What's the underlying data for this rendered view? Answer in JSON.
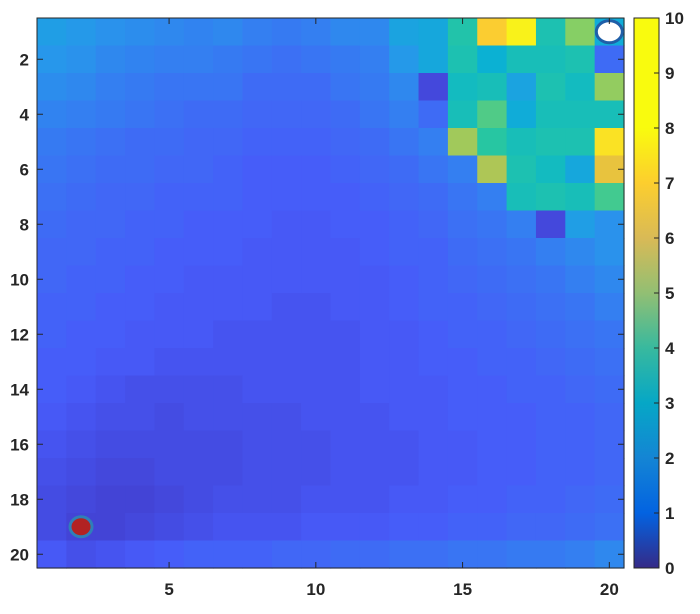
{
  "chart_data": {
    "type": "heatmap",
    "title": "",
    "xlabel": "",
    "ylabel": "",
    "x_ticks": [
      5,
      10,
      15,
      20
    ],
    "y_ticks": [
      2,
      4,
      6,
      8,
      10,
      12,
      14,
      16,
      18,
      20
    ],
    "xlim": [
      0.5,
      20.5
    ],
    "ylim": [
      0.5,
      20.5
    ],
    "y_direction": "reverse",
    "colorbar": {
      "min": 0,
      "max": 10,
      "ticks": [
        0,
        1,
        2,
        3,
        4,
        5,
        6,
        7,
        8,
        9,
        10
      ],
      "colormap": "parula",
      "placement": "right"
    },
    "grid": false,
    "markers": [
      {
        "name": "start",
        "x": 2,
        "y": 19,
        "fill": "#b22222",
        "stroke": "#2f7fb8"
      },
      {
        "name": "goal",
        "x": 20,
        "y": 1,
        "fill": "#ffffff",
        "stroke": "#1f5fa8"
      }
    ],
    "values": [
      [
        2.8,
        2.6,
        2.4,
        2.3,
        2.2,
        2.1,
        2.2,
        2.0,
        1.9,
        2.0,
        2.2,
        2.2,
        3.0,
        3.2,
        4.8,
        8.9,
        9.8,
        4.6,
        6.4,
        3.4
      ],
      [
        2.5,
        2.4,
        2.2,
        2.1,
        2.0,
        2.0,
        1.9,
        1.8,
        1.7,
        1.8,
        1.9,
        2.0,
        2.6,
        3.2,
        4.6,
        3.6,
        4.4,
        4.4,
        4.6,
        1.6
      ],
      [
        2.3,
        2.2,
        2.0,
        1.9,
        1.8,
        1.8,
        1.8,
        1.6,
        1.6,
        1.6,
        1.8,
        1.9,
        2.2,
        0.8,
        4.2,
        4.4,
        3.0,
        4.6,
        4.2,
        6.6
      ],
      [
        2.1,
        2.0,
        1.9,
        1.8,
        1.7,
        1.6,
        1.6,
        1.5,
        1.5,
        1.5,
        1.6,
        1.8,
        2.0,
        1.6,
        4.4,
        5.6,
        3.4,
        4.4,
        4.4,
        4.4
      ],
      [
        1.9,
        1.8,
        1.7,
        1.6,
        1.6,
        1.5,
        1.5,
        1.4,
        1.4,
        1.4,
        1.5,
        1.6,
        1.8,
        2.0,
        6.8,
        5.0,
        4.4,
        4.6,
        4.6,
        9.4
      ],
      [
        1.8,
        1.7,
        1.6,
        1.6,
        1.5,
        1.5,
        1.4,
        1.3,
        1.3,
        1.3,
        1.4,
        1.5,
        1.6,
        1.8,
        2.0,
        7.0,
        4.6,
        4.2,
        3.2,
        8.2
      ],
      [
        1.7,
        1.6,
        1.5,
        1.5,
        1.4,
        1.4,
        1.4,
        1.3,
        1.3,
        1.3,
        1.3,
        1.4,
        1.5,
        1.6,
        1.8,
        2.0,
        4.4,
        4.6,
        4.4,
        5.4
      ],
      [
        1.6,
        1.5,
        1.5,
        1.4,
        1.4,
        1.3,
        1.3,
        1.3,
        1.2,
        1.2,
        1.3,
        1.3,
        1.4,
        1.5,
        1.7,
        1.8,
        2.0,
        0.8,
        2.8,
        2.4
      ],
      [
        1.5,
        1.5,
        1.4,
        1.4,
        1.3,
        1.3,
        1.3,
        1.2,
        1.2,
        1.2,
        1.2,
        1.3,
        1.4,
        1.4,
        1.6,
        1.7,
        1.8,
        2.0,
        2.2,
        2.4
      ],
      [
        1.5,
        1.4,
        1.4,
        1.3,
        1.3,
        1.2,
        1.2,
        1.2,
        1.2,
        1.2,
        1.2,
        1.2,
        1.3,
        1.4,
        1.5,
        1.6,
        1.7,
        1.8,
        2.0,
        2.2
      ],
      [
        1.4,
        1.4,
        1.3,
        1.3,
        1.2,
        1.2,
        1.2,
        1.2,
        1.1,
        1.1,
        1.2,
        1.2,
        1.3,
        1.4,
        1.4,
        1.5,
        1.6,
        1.7,
        1.8,
        2.0
      ],
      [
        1.4,
        1.3,
        1.3,
        1.2,
        1.2,
        1.2,
        1.1,
        1.1,
        1.1,
        1.1,
        1.1,
        1.2,
        1.2,
        1.3,
        1.4,
        1.4,
        1.5,
        1.6,
        1.7,
        1.8
      ],
      [
        1.3,
        1.3,
        1.2,
        1.2,
        1.1,
        1.1,
        1.1,
        1.1,
        1.1,
        1.1,
        1.1,
        1.2,
        1.2,
        1.3,
        1.3,
        1.4,
        1.4,
        1.5,
        1.6,
        1.7
      ],
      [
        1.3,
        1.2,
        1.1,
        1.0,
        1.0,
        1.0,
        1.0,
        1.1,
        1.1,
        1.1,
        1.1,
        1.2,
        1.2,
        1.2,
        1.3,
        1.3,
        1.4,
        1.4,
        1.5,
        1.6
      ],
      [
        1.2,
        1.1,
        1.0,
        1.0,
        0.9,
        1.0,
        1.0,
        1.0,
        1.0,
        1.1,
        1.1,
        1.1,
        1.2,
        1.2,
        1.3,
        1.3,
        1.3,
        1.4,
        1.4,
        1.5
      ],
      [
        1.1,
        1.0,
        0.9,
        0.9,
        0.9,
        0.9,
        0.9,
        1.0,
        1.0,
        1.0,
        1.1,
        1.1,
        1.1,
        1.2,
        1.2,
        1.3,
        1.3,
        1.4,
        1.4,
        1.5
      ],
      [
        1.0,
        0.9,
        0.8,
        0.8,
        0.9,
        0.9,
        0.9,
        1.0,
        1.0,
        1.0,
        1.1,
        1.1,
        1.1,
        1.2,
        1.2,
        1.3,
        1.3,
        1.4,
        1.4,
        1.5
      ],
      [
        0.9,
        0.8,
        0.7,
        0.7,
        0.8,
        0.9,
        1.0,
        1.0,
        1.0,
        1.1,
        1.1,
        1.1,
        1.2,
        1.2,
        1.3,
        1.3,
        1.4,
        1.4,
        1.5,
        1.6
      ],
      [
        0.9,
        0.7,
        0.7,
        0.8,
        0.9,
        1.0,
        1.1,
        1.1,
        1.1,
        1.2,
        1.2,
        1.2,
        1.3,
        1.3,
        1.4,
        1.4,
        1.5,
        1.5,
        1.6,
        1.7
      ],
      [
        1.2,
        1.0,
        1.1,
        1.2,
        1.3,
        1.4,
        1.4,
        1.4,
        1.5,
        1.5,
        1.6,
        1.6,
        1.7,
        1.7,
        1.8,
        1.8,
        1.9,
        1.9,
        2.0,
        2.2
      ]
    ]
  }
}
